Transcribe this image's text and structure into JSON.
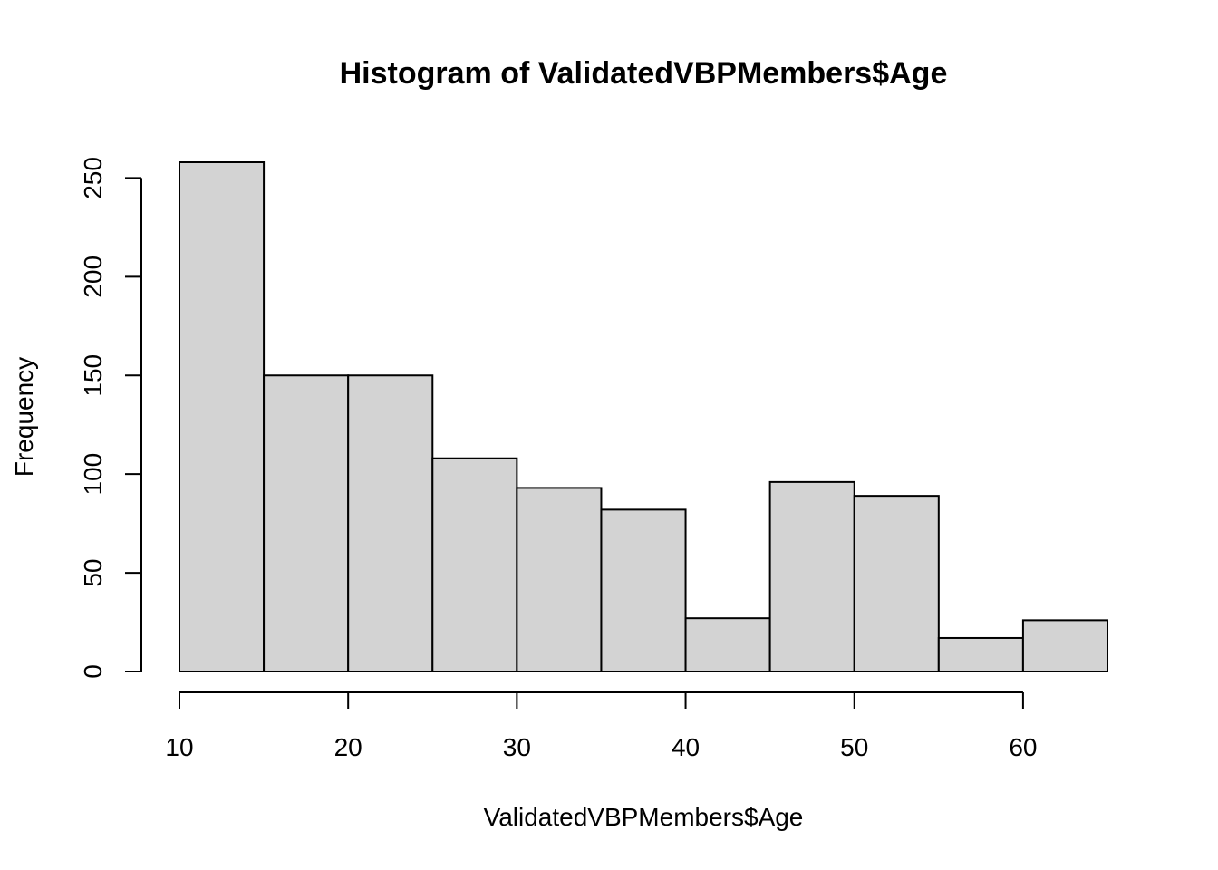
{
  "chart_data": {
    "type": "bar",
    "title": "Histogram of ValidatedVBPMembers$Age",
    "xlabel": "ValidatedVBPMembers$Age",
    "ylabel": "Frequency",
    "bins": [
      {
        "start": 10,
        "end": 15,
        "count": 258
      },
      {
        "start": 15,
        "end": 20,
        "count": 150
      },
      {
        "start": 20,
        "end": 25,
        "count": 150
      },
      {
        "start": 25,
        "end": 30,
        "count": 108
      },
      {
        "start": 30,
        "end": 35,
        "count": 93
      },
      {
        "start": 35,
        "end": 40,
        "count": 82
      },
      {
        "start": 40,
        "end": 45,
        "count": 27
      },
      {
        "start": 45,
        "end": 50,
        "count": 96
      },
      {
        "start": 50,
        "end": 55,
        "count": 89
      },
      {
        "start": 55,
        "end": 60,
        "count": 17
      },
      {
        "start": 60,
        "end": 65,
        "count": 26
      }
    ],
    "xticks": [
      10,
      20,
      30,
      40,
      50,
      60
    ],
    "yticks": [
      0,
      50,
      100,
      150,
      200,
      250
    ],
    "xlim": [
      10,
      65
    ],
    "ylim": [
      0,
      258
    ],
    "colors": {
      "bar_fill": "#d3d3d3",
      "bar_stroke": "#000000"
    },
    "grid": false,
    "legend": "none"
  }
}
